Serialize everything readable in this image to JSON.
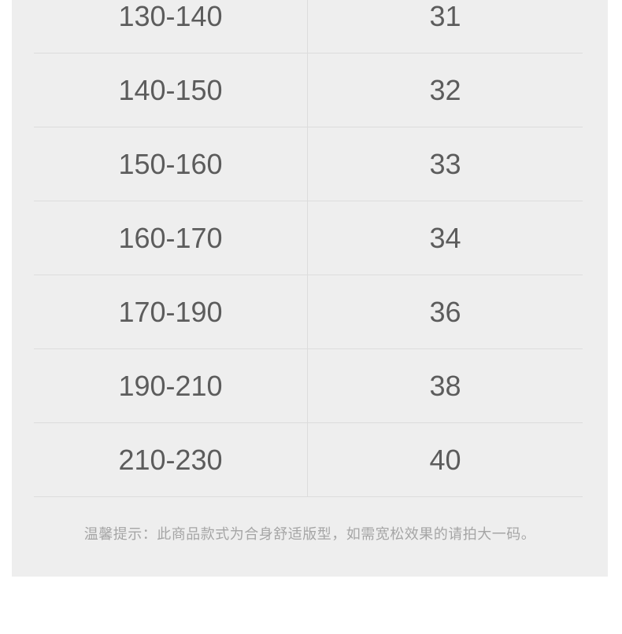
{
  "chart_data": {
    "type": "table",
    "rows": [
      {
        "range": "130-140",
        "size": "31"
      },
      {
        "range": "140-150",
        "size": "32"
      },
      {
        "range": "150-160",
        "size": "33"
      },
      {
        "range": "160-170",
        "size": "34"
      },
      {
        "range": "170-190",
        "size": "36"
      },
      {
        "range": "190-210",
        "size": "38"
      },
      {
        "range": "210-230",
        "size": "40"
      }
    ],
    "note": "温馨提示：此商品款式为合身舒适版型，如需宽松效果的请拍大一码。",
    "layout": "two-column table, first row clipped at top, grid on"
  },
  "colors": {
    "page_bg": "#ffffff",
    "panel_bg": "#eeeeee",
    "grid_line": "#dcdcdc",
    "value_text": "#5c5c5c",
    "note_text": "#a5a5a5"
  }
}
